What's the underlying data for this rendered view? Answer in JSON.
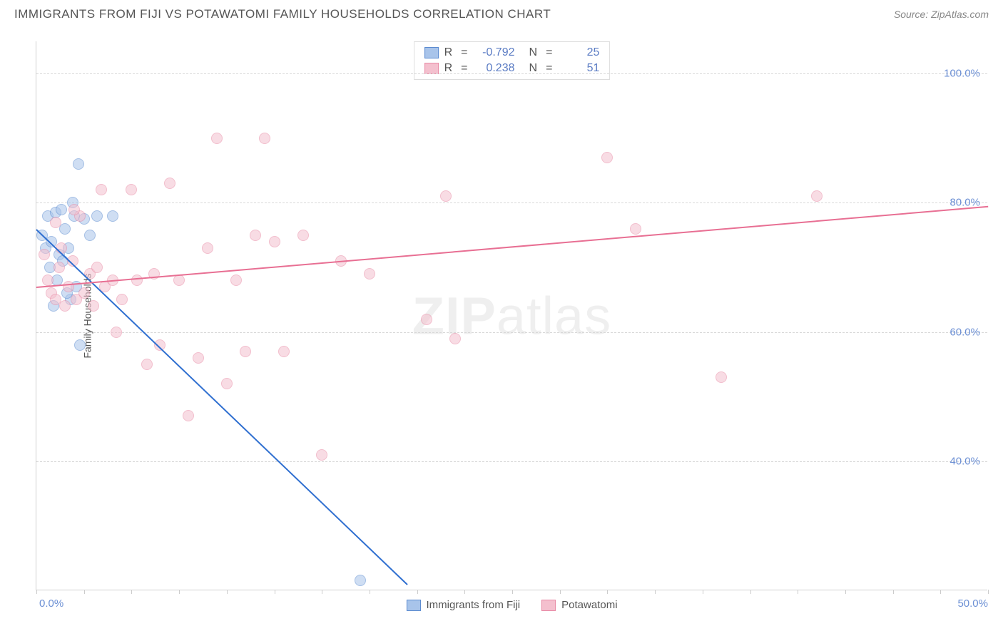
{
  "header": {
    "title": "IMMIGRANTS FROM FIJI VS POTAWATOMI FAMILY HOUSEHOLDS CORRELATION CHART",
    "source": "Source: ZipAtlas.com"
  },
  "chart": {
    "type": "scatter",
    "ylabel": "Family Households",
    "watermark_bold": "ZIP",
    "watermark_rest": "atlas",
    "background_color": "#ffffff",
    "grid_color": "#d8d8d8",
    "axis_color": "#d0d0d0",
    "label_color": "#555555",
    "tick_label_color": "#6b8fd4",
    "xlim": [
      0,
      50
    ],
    "ylim": [
      20,
      105
    ],
    "x_ticks_major": [
      0,
      50
    ],
    "x_ticks_minor_step": 2.5,
    "y_ticks": [
      40,
      60,
      80,
      100
    ],
    "y_tick_labels": [
      "40.0%",
      "60.0%",
      "80.0%",
      "100.0%"
    ],
    "x_tick_labels": {
      "0": "0.0%",
      "50": "50.0%"
    },
    "point_radius": 8,
    "point_opacity": 0.55,
    "series": [
      {
        "name": "Immigrants from Fiji",
        "fill": "#a8c4ea",
        "stroke": "#5b8bd0",
        "trend_color": "#2f6fd0",
        "trend": {
          "x1": 0,
          "y1": 76,
          "x2": 19.5,
          "y2": 21
        },
        "r_value": "-0.792",
        "n_value": "25",
        "points": [
          [
            0.3,
            75
          ],
          [
            0.5,
            73
          ],
          [
            0.6,
            78
          ],
          [
            0.8,
            74
          ],
          [
            1.0,
            78.5
          ],
          [
            1.2,
            72
          ],
          [
            1.3,
            79
          ],
          [
            1.4,
            71
          ],
          [
            1.5,
            76
          ],
          [
            1.7,
            73
          ],
          [
            1.8,
            65
          ],
          [
            2.0,
            78
          ],
          [
            2.2,
            86
          ],
          [
            2.5,
            77.5
          ],
          [
            2.8,
            75
          ],
          [
            0.7,
            70
          ],
          [
            1.1,
            68
          ],
          [
            1.6,
            66
          ],
          [
            1.9,
            80
          ],
          [
            0.9,
            64
          ],
          [
            2.3,
            58
          ],
          [
            3.2,
            78
          ],
          [
            4.0,
            78
          ],
          [
            2.1,
            67
          ],
          [
            17.0,
            21.5
          ]
        ]
      },
      {
        "name": "Potawatomi",
        "fill": "#f4c0ce",
        "stroke": "#e88aa5",
        "trend_color": "#e86f93",
        "trend": {
          "x1": 0,
          "y1": 67,
          "x2": 50,
          "y2": 79.5
        },
        "r_value": "0.238",
        "n_value": "51",
        "points": [
          [
            0.4,
            72
          ],
          [
            0.6,
            68
          ],
          [
            0.8,
            66
          ],
          [
            1.0,
            65
          ],
          [
            1.2,
            70
          ],
          [
            1.3,
            73
          ],
          [
            1.5,
            64
          ],
          [
            1.7,
            67
          ],
          [
            1.9,
            71
          ],
          [
            2.1,
            65
          ],
          [
            2.3,
            78
          ],
          [
            2.5,
            66
          ],
          [
            2.8,
            69
          ],
          [
            3.0,
            64
          ],
          [
            3.2,
            70
          ],
          [
            3.4,
            82
          ],
          [
            3.6,
            67
          ],
          [
            4.0,
            68
          ],
          [
            4.2,
            60
          ],
          [
            4.5,
            65
          ],
          [
            5.0,
            82
          ],
          [
            5.3,
            68
          ],
          [
            5.8,
            55
          ],
          [
            6.2,
            69
          ],
          [
            6.5,
            58
          ],
          [
            7.0,
            83
          ],
          [
            7.5,
            68
          ],
          [
            8.0,
            47
          ],
          [
            8.5,
            56
          ],
          [
            9.0,
            73
          ],
          [
            9.5,
            90
          ],
          [
            10.0,
            52
          ],
          [
            10.5,
            68
          ],
          [
            11.0,
            57
          ],
          [
            11.5,
            75
          ],
          [
            12.0,
            90
          ],
          [
            12.5,
            74
          ],
          [
            13.0,
            57
          ],
          [
            14.0,
            75
          ],
          [
            15.0,
            41
          ],
          [
            16.0,
            71
          ],
          [
            17.5,
            69
          ],
          [
            20.5,
            62
          ],
          [
            21.5,
            81
          ],
          [
            22.0,
            59
          ],
          [
            30.0,
            87
          ],
          [
            31.5,
            76
          ],
          [
            36.0,
            53
          ],
          [
            41.0,
            81
          ],
          [
            2.0,
            79
          ],
          [
            1.0,
            77
          ]
        ]
      }
    ]
  },
  "legend_top_label_r": "R",
  "legend_top_label_eq": "=",
  "legend_top_label_n": "N",
  "legend_bottom": {
    "label_a": "Immigrants from Fiji",
    "label_b": "Potawatomi"
  }
}
